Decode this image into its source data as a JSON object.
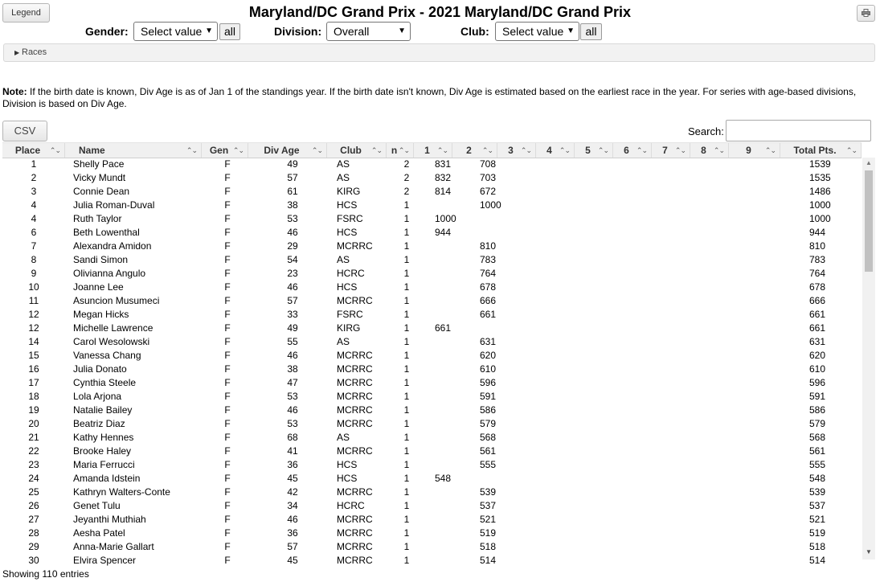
{
  "header": {
    "legend_label": "Legend",
    "title": "Maryland/DC Grand Prix - 2021 Maryland/DC Grand Prix",
    "print_icon": "printer-icon"
  },
  "filters": {
    "gender_label": "Gender:",
    "gender_value": "Select value",
    "division_label": "Division:",
    "division_value": "Overall",
    "club_label": "Club:",
    "club_value": "Select value",
    "all_label": "all"
  },
  "races": {
    "label": "Races"
  },
  "note": {
    "bold": "Note:",
    "text": " If the birth date is known, Div Age is as of Jan 1 of the standings year. If the birth date isn't known, Div Age is estimated based on the earliest race in the year. For series with age-based divisions, Division is based on Div Age."
  },
  "toolbar": {
    "csv_label": "CSV",
    "search_label": "Search:",
    "search_value": ""
  },
  "table": {
    "columns": [
      "Place",
      "Name",
      "Gen",
      "Div Age",
      "Club",
      "n",
      "1",
      "2",
      "3",
      "4",
      "5",
      "6",
      "7",
      "8",
      "9",
      "Total Pts."
    ],
    "rows": [
      [
        "1",
        "Shelly Pace",
        "F",
        "49",
        "AS",
        "2",
        "831",
        "708",
        "1539"
      ],
      [
        "2",
        "Vicky Mundt",
        "F",
        "57",
        "AS",
        "2",
        "832",
        "703",
        "1535"
      ],
      [
        "3",
        "Connie Dean",
        "F",
        "61",
        "KIRG",
        "2",
        "814",
        "672",
        "1486"
      ],
      [
        "4",
        "Julia Roman-Duval",
        "F",
        "38",
        "HCS",
        "1",
        "",
        "1000",
        "1000"
      ],
      [
        "4",
        "Ruth Taylor",
        "F",
        "53",
        "FSRC",
        "1",
        "1000",
        "",
        "1000"
      ],
      [
        "6",
        "Beth Lowenthal",
        "F",
        "46",
        "HCS",
        "1",
        "944",
        "",
        "944"
      ],
      [
        "7",
        "Alexandra Amidon",
        "F",
        "29",
        "MCRRC",
        "1",
        "",
        "810",
        "810"
      ],
      [
        "8",
        "Sandi Simon",
        "F",
        "54",
        "AS",
        "1",
        "",
        "783",
        "783"
      ],
      [
        "9",
        "Olivianna Angulo",
        "F",
        "23",
        "HCRC",
        "1",
        "",
        "764",
        "764"
      ],
      [
        "10",
        "Joanne Lee",
        "F",
        "46",
        "HCS",
        "1",
        "",
        "678",
        "678"
      ],
      [
        "11",
        "Asuncion Musumeci",
        "F",
        "57",
        "MCRRC",
        "1",
        "",
        "666",
        "666"
      ],
      [
        "12",
        "Megan Hicks",
        "F",
        "33",
        "FSRC",
        "1",
        "",
        "661",
        "661"
      ],
      [
        "12",
        "Michelle Lawrence",
        "F",
        "49",
        "KIRG",
        "1",
        "661",
        "",
        "661"
      ],
      [
        "14",
        "Carol Wesolowski",
        "F",
        "55",
        "AS",
        "1",
        "",
        "631",
        "631"
      ],
      [
        "15",
        "Vanessa Chang",
        "F",
        "46",
        "MCRRC",
        "1",
        "",
        "620",
        "620"
      ],
      [
        "16",
        "Julia Donato",
        "F",
        "38",
        "MCRRC",
        "1",
        "",
        "610",
        "610"
      ],
      [
        "17",
        "Cynthia Steele",
        "F",
        "47",
        "MCRRC",
        "1",
        "",
        "596",
        "596"
      ],
      [
        "18",
        "Lola Arjona",
        "F",
        "53",
        "MCRRC",
        "1",
        "",
        "591",
        "591"
      ],
      [
        "19",
        "Natalie Bailey",
        "F",
        "46",
        "MCRRC",
        "1",
        "",
        "586",
        "586"
      ],
      [
        "20",
        "Beatriz Diaz",
        "F",
        "53",
        "MCRRC",
        "1",
        "",
        "579",
        "579"
      ],
      [
        "21",
        "Kathy Hennes",
        "F",
        "68",
        "AS",
        "1",
        "",
        "568",
        "568"
      ],
      [
        "22",
        "Brooke Haley",
        "F",
        "41",
        "MCRRC",
        "1",
        "",
        "561",
        "561"
      ],
      [
        "23",
        "Maria Ferrucci",
        "F",
        "36",
        "HCS",
        "1",
        "",
        "555",
        "555"
      ],
      [
        "24",
        "Amanda Idstein",
        "F",
        "45",
        "HCS",
        "1",
        "548",
        "",
        "548"
      ],
      [
        "25",
        "Kathryn Walters-Conte",
        "F",
        "42",
        "MCRRC",
        "1",
        "",
        "539",
        "539"
      ],
      [
        "26",
        "Genet Tulu",
        "F",
        "34",
        "HCRC",
        "1",
        "",
        "537",
        "537"
      ],
      [
        "27",
        "Jeyanthi Muthiah",
        "F",
        "46",
        "MCRRC",
        "1",
        "",
        "521",
        "521"
      ],
      [
        "28",
        "Aesha Patel",
        "F",
        "36",
        "MCRRC",
        "1",
        "",
        "519",
        "519"
      ],
      [
        "29",
        "Anna-Marie Gallart",
        "F",
        "57",
        "MCRRC",
        "1",
        "",
        "518",
        "518"
      ],
      [
        "30",
        "Elvira Spencer",
        "F",
        "45",
        "MCRRC",
        "1",
        "",
        "514",
        "514"
      ]
    ]
  },
  "footer": {
    "showing": "Showing 110 entries"
  }
}
